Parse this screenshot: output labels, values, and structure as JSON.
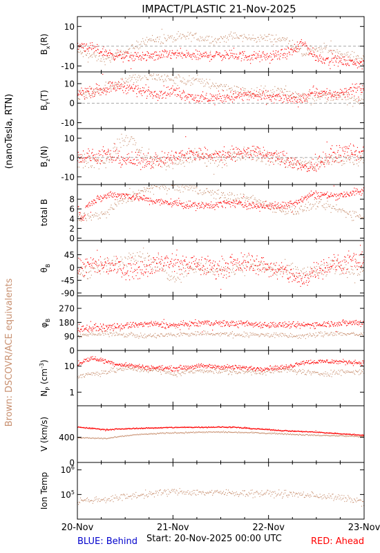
{
  "title": "IMPACT/PLASTIC   21-Nov-2025",
  "left_label": "(nanoTesla, RTN)",
  "side_label": "Brown: DSCOVR/ACE equivalents",
  "footer": {
    "blue": "BLUE: Behind",
    "start": "Start: 20-Nov-2025 00:00 UTC",
    "red": "RED: Ahead"
  },
  "colors": {
    "ahead": "#ff0000",
    "dscovr": "#c89070",
    "behind": "#0000cc",
    "frame": "#000000"
  },
  "chart_data": {
    "type": "scatter",
    "x_axis": {
      "ticks": [
        "20-Nov",
        "21-Nov",
        "22-Nov",
        "23-Nov"
      ],
      "range_days": [
        0,
        3
      ]
    },
    "panels": [
      {
        "id": "bx",
        "ylabel": "Bx(R)",
        "ylabel_main": "B",
        "ylabel_sub": "x",
        "ylabel_suffix": "(R)",
        "ylim": [
          -13,
          15
        ],
        "yticks": [
          {
            "v": 10,
            "label": "10"
          },
          {
            "v": 0,
            "label": "0"
          },
          {
            "v": -10,
            "label": "-10"
          }
        ],
        "zero_line": true,
        "red_knots": [
          [
            0,
            0
          ],
          [
            0.05,
            0.5
          ],
          [
            0.17,
            -1.5
          ],
          [
            0.35,
            -4
          ],
          [
            0.5,
            -5.5
          ],
          [
            0.8,
            -5
          ],
          [
            1.0,
            -4
          ],
          [
            1.25,
            -5
          ],
          [
            1.5,
            -4.5
          ],
          [
            1.75,
            -5
          ],
          [
            2.0,
            -5.5
          ],
          [
            2.15,
            -4
          ],
          [
            2.28,
            -2
          ],
          [
            2.35,
            2
          ],
          [
            2.5,
            -6
          ],
          [
            2.75,
            -7.5
          ],
          [
            3.0,
            -9
          ]
        ],
        "red_noise": 2.2,
        "brown_knots": [
          [
            0,
            -3
          ],
          [
            0.3,
            -7
          ],
          [
            0.55,
            -2
          ],
          [
            0.7,
            3
          ],
          [
            1.0,
            4
          ],
          [
            1.2,
            5
          ],
          [
            1.45,
            3
          ],
          [
            1.6,
            5
          ],
          [
            1.8,
            4
          ],
          [
            2.0,
            4
          ],
          [
            2.2,
            3
          ],
          [
            2.35,
            -4
          ],
          [
            2.6,
            -1
          ],
          [
            2.8,
            -5
          ],
          [
            3.0,
            -6
          ]
        ],
        "brown_noise": 2.0
      },
      {
        "id": "by",
        "ylabel": "By(T)",
        "ylabel_main": "B",
        "ylabel_sub": "Y",
        "ylabel_suffix": "(T)",
        "ylim": [
          -13,
          16
        ],
        "yticks": [
          {
            "v": 10,
            "label": "10"
          },
          {
            "v": 0,
            "label": "0"
          },
          {
            "v": -10,
            "label": "-10"
          }
        ],
        "zero_line": true,
        "red_knots": [
          [
            0,
            5
          ],
          [
            0.25,
            7
          ],
          [
            0.45,
            9
          ],
          [
            0.6,
            7
          ],
          [
            0.8,
            5
          ],
          [
            1.0,
            6
          ],
          [
            1.3,
            2
          ],
          [
            1.5,
            3
          ],
          [
            1.8,
            4
          ],
          [
            2.1,
            3
          ],
          [
            2.3,
            1
          ],
          [
            2.45,
            6
          ],
          [
            2.7,
            4
          ],
          [
            3.0,
            8
          ]
        ],
        "red_noise": 2.6,
        "brown_knots": [
          [
            0,
            3
          ],
          [
            0.4,
            10
          ],
          [
            0.7,
            14
          ],
          [
            1.0,
            12
          ],
          [
            1.3,
            11
          ],
          [
            1.55,
            8
          ],
          [
            1.8,
            5
          ],
          [
            2.1,
            6
          ],
          [
            2.4,
            3
          ],
          [
            2.7,
            4
          ],
          [
            3.0,
            0
          ]
        ],
        "brown_noise": 2.5
      },
      {
        "id": "bz",
        "ylabel": "Bz(N)",
        "ylabel_main": "B",
        "ylabel_sub": "z",
        "ylabel_suffix": "(N)",
        "ylim": [
          -14,
          15
        ],
        "yticks": [
          {
            "v": 10,
            "label": "10"
          },
          {
            "v": 0,
            "label": "0"
          },
          {
            "v": -10,
            "label": "-10"
          }
        ],
        "zero_line": true,
        "red_knots": [
          [
            0,
            0
          ],
          [
            0.3,
            1
          ],
          [
            0.6,
            -2
          ],
          [
            0.9,
            -1
          ],
          [
            1.2,
            2
          ],
          [
            1.5,
            1
          ],
          [
            1.8,
            3
          ],
          [
            2.1,
            0
          ],
          [
            2.3,
            -3
          ],
          [
            2.4,
            -6
          ],
          [
            2.6,
            0
          ],
          [
            2.8,
            3
          ],
          [
            3.0,
            2
          ]
        ],
        "red_noise": 3.4,
        "brown_knots": [
          [
            0,
            -2
          ],
          [
            0.3,
            -2
          ],
          [
            0.45,
            8
          ],
          [
            0.55,
            10
          ],
          [
            0.7,
            0
          ],
          [
            1.0,
            -4
          ],
          [
            1.2,
            1
          ],
          [
            1.5,
            -1
          ],
          [
            1.8,
            2
          ],
          [
            2.1,
            -1
          ],
          [
            2.4,
            -4
          ],
          [
            2.7,
            -1
          ],
          [
            3.0,
            0
          ]
        ],
        "brown_noise": 3.2
      },
      {
        "id": "btot",
        "ylabel": "total B",
        "ylim": [
          -0.5,
          11
        ],
        "yticks": [
          {
            "v": 8,
            "label": "8"
          },
          {
            "v": 6,
            "label": "6"
          },
          {
            "v": 4,
            "label": "4"
          },
          {
            "v": 2,
            "label": "2"
          },
          {
            "v": 0,
            "label": "0"
          }
        ],
        "zero_line": false,
        "red_knots": [
          [
            0,
            6.5
          ],
          [
            0.05,
            3.5
          ],
          [
            0.1,
            7
          ],
          [
            0.35,
            9
          ],
          [
            0.6,
            8.5
          ],
          [
            0.8,
            7.5
          ],
          [
            1.0,
            7.2
          ],
          [
            1.3,
            6.5
          ],
          [
            1.6,
            7.2
          ],
          [
            1.9,
            6.6
          ],
          [
            2.1,
            6.5
          ],
          [
            2.3,
            7.5
          ],
          [
            2.45,
            9
          ],
          [
            2.7,
            8.7
          ],
          [
            2.9,
            9.3
          ],
          [
            3.0,
            9.7
          ]
        ],
        "red_noise": 0.7,
        "brown_knots": [
          [
            0,
            4
          ],
          [
            0.3,
            5
          ],
          [
            0.45,
            7.5
          ],
          [
            0.6,
            9
          ],
          [
            0.8,
            10.5
          ],
          [
            1.0,
            10.5
          ],
          [
            1.2,
            10
          ],
          [
            1.45,
            9
          ],
          [
            1.6,
            8.5
          ],
          [
            1.9,
            7.5
          ],
          [
            2.1,
            6
          ],
          [
            2.3,
            5.5
          ],
          [
            2.5,
            7
          ],
          [
            2.7,
            6
          ],
          [
            2.85,
            5
          ],
          [
            3.0,
            4.5
          ]
        ],
        "brown_noise": 0.9
      },
      {
        "id": "theta",
        "ylabel": "theta_B",
        "ylabel_main": "θ",
        "ylabel_sub": "B",
        "ylim": [
          -100,
          95
        ],
        "yticks": [
          {
            "v": 45,
            "label": "45"
          },
          {
            "v": 0,
            "label": "0"
          },
          {
            "v": -45,
            "label": "-45"
          },
          {
            "v": -90,
            "label": "-90"
          }
        ],
        "zero_line": false,
        "red_knots": [
          [
            0,
            0
          ],
          [
            0.3,
            10
          ],
          [
            0.6,
            -10
          ],
          [
            0.9,
            20
          ],
          [
            1.2,
            10
          ],
          [
            1.5,
            0
          ],
          [
            1.8,
            20
          ],
          [
            2.0,
            0
          ],
          [
            2.2,
            -20
          ],
          [
            2.35,
            -50
          ],
          [
            2.5,
            0
          ],
          [
            2.7,
            10
          ],
          [
            2.9,
            20
          ],
          [
            3.0,
            15
          ]
        ],
        "red_noise": 30,
        "brown_knots": [
          [
            0,
            -20
          ],
          [
            0.4,
            10
          ],
          [
            0.6,
            50
          ],
          [
            0.7,
            40
          ],
          [
            1.0,
            -30
          ],
          [
            1.2,
            0
          ],
          [
            1.5,
            -10
          ],
          [
            1.8,
            10
          ],
          [
            2.1,
            -10
          ],
          [
            2.4,
            -20
          ],
          [
            2.7,
            0
          ],
          [
            3.0,
            -10
          ]
        ],
        "brown_noise": 25
      },
      {
        "id": "phi",
        "ylabel": "phi_B",
        "ylabel_main": "φ",
        "ylabel_sub": "B",
        "ylim": [
          0,
          350
        ],
        "yticks": [
          {
            "v": 270,
            "label": "270"
          },
          {
            "v": 180,
            "label": "180"
          },
          {
            "v": 90,
            "label": "90"
          },
          {
            "v": 0,
            "label": "0"
          }
        ],
        "zero_line": false,
        "red_knots": [
          [
            0,
            140
          ],
          [
            0.4,
            150
          ],
          [
            0.7,
            170
          ],
          [
            1.0,
            160
          ],
          [
            1.35,
            175
          ],
          [
            1.7,
            170
          ],
          [
            2.0,
            165
          ],
          [
            2.3,
            160
          ],
          [
            2.6,
            170
          ],
          [
            3.0,
            180
          ]
        ],
        "red_noise": 18,
        "brown_knots": [
          [
            0,
            100
          ],
          [
            0.4,
            110
          ],
          [
            0.7,
            90
          ],
          [
            1.0,
            100
          ],
          [
            1.3,
            110
          ],
          [
            1.7,
            100
          ],
          [
            2.0,
            100
          ],
          [
            2.3,
            90
          ],
          [
            2.7,
            110
          ],
          [
            3.0,
            100
          ]
        ],
        "brown_noise": 15
      },
      {
        "id": "np",
        "ylabel": "Np (cm^-3)",
        "ylabel_main": "N",
        "ylabel_sub": "P",
        "ylabel_suffix": " (cm",
        "ylabel_sup": "-3",
        "ylabel_end": ")",
        "scale": "log",
        "ylim": [
          0.3,
          40
        ],
        "yticks": [
          {
            "v": 10,
            "label": "10"
          },
          {
            "v": 1,
            "label": "1"
          }
        ],
        "zero_line": false,
        "red_knots": [
          [
            0,
            12
          ],
          [
            0.15,
            20
          ],
          [
            0.4,
            12
          ],
          [
            0.7,
            9
          ],
          [
            1.0,
            8
          ],
          [
            1.3,
            10
          ],
          [
            1.6,
            9
          ],
          [
            1.9,
            8
          ],
          [
            2.2,
            9
          ],
          [
            2.35,
            14
          ],
          [
            2.6,
            15
          ],
          [
            2.9,
            14
          ],
          [
            3.0,
            13
          ]
        ],
        "red_noise": 0.08,
        "brown_knots": [
          [
            0,
            4
          ],
          [
            0.3,
            6
          ],
          [
            0.5,
            8
          ],
          [
            0.8,
            7
          ],
          [
            1.0,
            5
          ],
          [
            1.3,
            7
          ],
          [
            1.6,
            6
          ],
          [
            1.9,
            6
          ],
          [
            2.2,
            7
          ],
          [
            2.5,
            5
          ],
          [
            2.8,
            6
          ],
          [
            3.0,
            6
          ]
        ],
        "brown_noise": 0.1
      },
      {
        "id": "v",
        "ylabel": "V (km/s)",
        "ylim": [
          0,
          900
        ],
        "yticks": [
          {
            "v": 400,
            "label": "400"
          },
          {
            "v": 0,
            "label": "0"
          }
        ],
        "zero_line": false,
        "red_knots": [
          [
            0,
            560
          ],
          [
            0.3,
            520
          ],
          [
            0.6,
            540
          ],
          [
            1.0,
            555
          ],
          [
            1.3,
            560
          ],
          [
            1.6,
            560
          ],
          [
            1.9,
            530
          ],
          [
            2.2,
            500
          ],
          [
            2.5,
            480
          ],
          [
            2.8,
            450
          ],
          [
            3.0,
            430
          ]
        ],
        "red_noise": 8,
        "brown_knots": [
          [
            0,
            390
          ],
          [
            0.3,
            380
          ],
          [
            0.6,
            440
          ],
          [
            1.0,
            470
          ],
          [
            1.3,
            480
          ],
          [
            1.6,
            480
          ],
          [
            1.9,
            470
          ],
          [
            2.2,
            450
          ],
          [
            2.5,
            430
          ],
          [
            2.8,
            420
          ],
          [
            3.0,
            410
          ]
        ],
        "brown_noise": 9
      },
      {
        "id": "temp",
        "ylabel": "Ion Temp",
        "scale": "log",
        "ylim": [
          10000,
          2000000
        ],
        "yticks": [
          {
            "v": 1000000,
            "label": "10^6",
            "base": "10",
            "exp": "6"
          },
          {
            "v": 100000,
            "label": "10^5",
            "base": "10",
            "exp": "5"
          }
        ],
        "zero_line": false,
        "red_knots": [],
        "red_noise": 0,
        "brown_knots": [
          [
            0,
            55000
          ],
          [
            0.2,
            60000
          ],
          [
            0.4,
            70000
          ],
          [
            0.6,
            90000
          ],
          [
            0.8,
            110000
          ],
          [
            1.0,
            130000
          ],
          [
            1.3,
            120000
          ],
          [
            1.6,
            115000
          ],
          [
            2.0,
            110000
          ],
          [
            2.3,
            100000
          ],
          [
            2.5,
            90000
          ],
          [
            2.7,
            75000
          ],
          [
            3.0,
            50000
          ]
        ],
        "brown_noise": 0.12
      }
    ]
  }
}
